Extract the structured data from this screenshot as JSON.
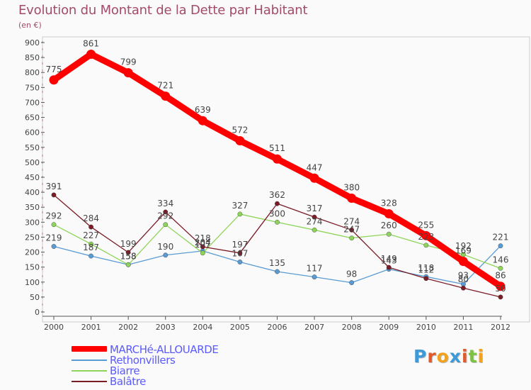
{
  "title": "Evolution du Montant de la Dette par Habitant",
  "subtitle": "(en €)",
  "logo": {
    "text": "Proxiti",
    "letters": [
      {
        "ch": "P",
        "color": "#3d9ad6"
      },
      {
        "ch": "r",
        "color": "#e05a2b"
      },
      {
        "ch": "o",
        "color": "#f3a21c"
      },
      {
        "ch": "x",
        "color": "#3d9ad6"
      },
      {
        "ch": "i",
        "color": "#e05a2b"
      },
      {
        "ch": "t",
        "color": "#7cc242"
      },
      {
        "ch": "i",
        "color": "#f3a21c"
      }
    ]
  },
  "chart_data": {
    "type": "line",
    "x": [
      2000,
      2001,
      2002,
      2003,
      2004,
      2005,
      2006,
      2007,
      2008,
      2009,
      2010,
      2011,
      2012
    ],
    "y_ticks": [
      0,
      50,
      100,
      150,
      200,
      250,
      300,
      350,
      400,
      450,
      500,
      550,
      600,
      650,
      700,
      750,
      800,
      850,
      900
    ],
    "ylim": [
      0,
      900
    ],
    "grid": false,
    "legend_position": "bottom-left",
    "series": [
      {
        "name": "MARCHé-ALLOUARDE",
        "color": "#ff0000",
        "values": [
          775,
          861,
          799,
          721,
          639,
          572,
          511,
          447,
          380,
          328,
          255,
          169,
          86
        ]
      },
      {
        "name": "Rethonvillers",
        "color": "#5a9bd4",
        "values": [
          219,
          187,
          158,
          190,
          204,
          167,
          135,
          117,
          98,
          143,
          118,
          93,
          221
        ]
      },
      {
        "name": "Biarre",
        "color": "#8ed45a",
        "values": [
          292,
          227,
          158,
          292,
          197,
          327,
          300,
          274,
          247,
          260,
          223,
          192,
          146
        ]
      },
      {
        "name": "Balâtre",
        "color": "#7a1c26",
        "values": [
          391,
          284,
          199,
          334,
          218,
          197,
          362,
          317,
          274,
          149,
          112,
          80,
          50
        ]
      }
    ]
  }
}
